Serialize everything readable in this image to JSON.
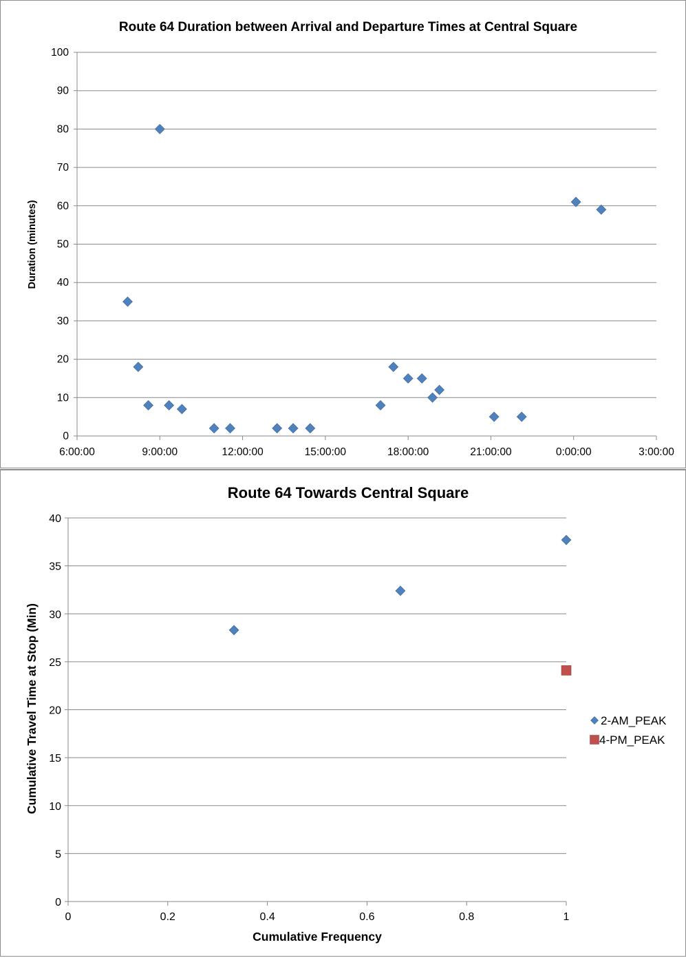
{
  "colors": {
    "series_blue": "#4f81bd",
    "series_red": "#c0504d",
    "gridline": "#888888"
  },
  "chart_data": [
    {
      "type": "scatter",
      "title": "Route 64  Duration between Arrival and Departure Times at Central Square",
      "xlabel": "",
      "ylabel": "Duration (minutes)",
      "xlim": [
        "6:00:00",
        "3:00:00"
      ],
      "ylim": [
        0,
        100
      ],
      "x_ticks": [
        "6:00:00",
        "9:00:00",
        "12:00:00",
        "15:00:00",
        "18:00:00",
        "21:00:00",
        "0:00:00",
        "3:00:00"
      ],
      "y_ticks": [
        0,
        10,
        20,
        30,
        40,
        50,
        60,
        70,
        80,
        90,
        100
      ],
      "grid": "horizontal",
      "legend": "none",
      "series": [
        {
          "marker": "diamond",
          "color": "#4f81bd",
          "points": [
            {
              "x": "7:50",
              "y": 35
            },
            {
              "x": "8:13",
              "y": 18
            },
            {
              "x": "8:35",
              "y": 8
            },
            {
              "x": "9:00",
              "y": 80
            },
            {
              "x": "9:20",
              "y": 8
            },
            {
              "x": "9:48",
              "y": 7
            },
            {
              "x": "10:58",
              "y": 2
            },
            {
              "x": "11:33",
              "y": 2
            },
            {
              "x": "13:15",
              "y": 2
            },
            {
              "x": "13:50",
              "y": 2
            },
            {
              "x": "14:27",
              "y": 2
            },
            {
              "x": "17:00",
              "y": 8
            },
            {
              "x": "17:28",
              "y": 18
            },
            {
              "x": "18:00",
              "y": 15
            },
            {
              "x": "18:30",
              "y": 15
            },
            {
              "x": "18:53",
              "y": 10
            },
            {
              "x": "19:08",
              "y": 12
            },
            {
              "x": "21:07",
              "y": 5
            },
            {
              "x": "22:07",
              "y": 5
            },
            {
              "x": "0:05",
              "y": 61
            },
            {
              "x": "1:00",
              "y": 59
            }
          ]
        }
      ]
    },
    {
      "type": "scatter",
      "title": "Route 64 Towards Central Square",
      "xlabel": "Cumulative Frequency",
      "ylabel": "Cumulative Travel Time at Stop (Min)",
      "xlim": [
        0,
        1
      ],
      "ylim": [
        0,
        40
      ],
      "x_ticks": [
        "0",
        "0.2",
        "0.4",
        "0.6",
        "0.8",
        "1"
      ],
      "y_ticks": [
        "0",
        "5",
        "10",
        "15",
        "20",
        "25",
        "30",
        "35",
        "40"
      ],
      "grid": "horizontal",
      "legend": "right",
      "series": [
        {
          "name": "2-AM_PEAK",
          "marker": "diamond",
          "color": "#4f81bd",
          "points": [
            {
              "x": 0.333,
              "y": 28.3
            },
            {
              "x": 0.667,
              "y": 32.4
            },
            {
              "x": 1.0,
              "y": 37.7
            }
          ]
        },
        {
          "name": "4-PM_PEAK",
          "marker": "square",
          "color": "#c0504d",
          "points": [
            {
              "x": 1.0,
              "y": 24.1
            }
          ]
        }
      ]
    }
  ]
}
